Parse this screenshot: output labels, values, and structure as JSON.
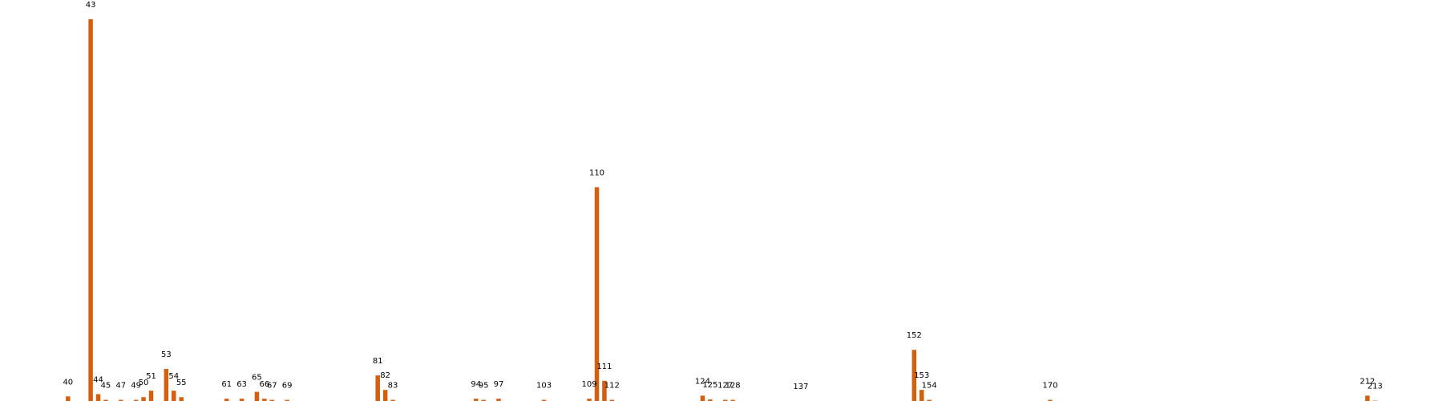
{
  "chart_data": {
    "type": "bar",
    "xlabel": "",
    "ylabel": "",
    "ylim": [
      0,
      100
    ],
    "xlim": [
      31,
      222
    ],
    "bar_color": "#d35f0f",
    "background_color": "#ffffff",
    "grid": false,
    "axes_visible": false,
    "legend": "none",
    "points": [
      {
        "x": 40,
        "value": 1.2
      },
      {
        "x": 43,
        "value": 100
      },
      {
        "x": 44,
        "value": 1.8
      },
      {
        "x": 45,
        "value": 0.3
      },
      {
        "x": 47,
        "value": 0.3
      },
      {
        "x": 49,
        "value": 0.3
      },
      {
        "x": 50,
        "value": 1.0
      },
      {
        "x": 51,
        "value": 2.7
      },
      {
        "x": 53,
        "value": 8.4
      },
      {
        "x": 54,
        "value": 2.7
      },
      {
        "x": 55,
        "value": 1.0
      },
      {
        "x": 61,
        "value": 0.6
      },
      {
        "x": 63,
        "value": 0.6
      },
      {
        "x": 65,
        "value": 2.4
      },
      {
        "x": 66,
        "value": 0.6
      },
      {
        "x": 67,
        "value": 0.3
      },
      {
        "x": 69,
        "value": 0.3
      },
      {
        "x": 81,
        "value": 6.7
      },
      {
        "x": 82,
        "value": 2.9
      },
      {
        "x": 83,
        "value": 0.3
      },
      {
        "x": 94,
        "value": 0.6
      },
      {
        "x": 95,
        "value": 0.3
      },
      {
        "x": 97,
        "value": 0.6
      },
      {
        "x": 103,
        "value": 0.3
      },
      {
        "x": 109,
        "value": 0.6
      },
      {
        "x": 110,
        "value": 56
      },
      {
        "x": 111,
        "value": 5.3
      },
      {
        "x": 112,
        "value": 0.3
      },
      {
        "x": 124,
        "value": 1.4
      },
      {
        "x": 125,
        "value": 0.4
      },
      {
        "x": 127,
        "value": 0.3
      },
      {
        "x": 128,
        "value": 0.3
      },
      {
        "x": 137,
        "value": 0.0
      },
      {
        "x": 152,
        "value": 13.4
      },
      {
        "x": 153,
        "value": 2.9
      },
      {
        "x": 154,
        "value": 0.3
      },
      {
        "x": 170,
        "value": 0.3
      },
      {
        "x": 212,
        "value": 1.4
      },
      {
        "x": 213,
        "value": 0.1
      }
    ]
  }
}
